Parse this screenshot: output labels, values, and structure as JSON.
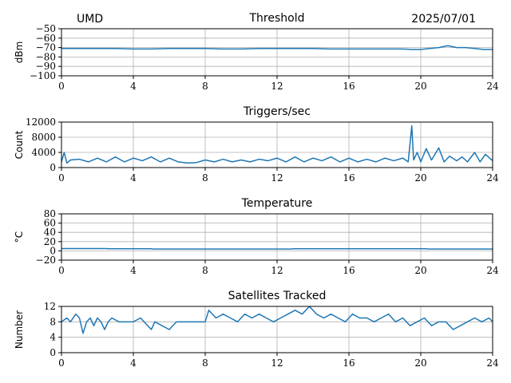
{
  "header": {
    "site": "UMD",
    "date": "2025/07/01"
  },
  "colors": {
    "series": "#1f77b4",
    "grid": "#b0b0b0"
  },
  "chart_data": [
    {
      "type": "line",
      "title": "Threshold",
      "ylabel": "dBm",
      "xlim": [
        0,
        24
      ],
      "ylim": [
        -100,
        -50
      ],
      "xticks": [
        "0",
        "4",
        "8",
        "12",
        "16",
        "20",
        "24"
      ],
      "yticks": [
        "−50",
        "−60",
        "−70",
        "−80",
        "−90",
        "−100"
      ],
      "grid": true,
      "x": [
        0,
        1,
        2,
        3,
        4,
        5,
        6,
        7,
        8,
        9,
        10,
        11,
        12,
        13,
        14,
        15,
        16,
        17,
        18,
        19,
        19.5,
        20,
        20.5,
        21,
        21.5,
        22,
        22.5,
        23,
        23.5,
        24
      ],
      "y": [
        -71,
        -71,
        -71,
        -71,
        -71.5,
        -71.5,
        -71,
        -71,
        -71,
        -71.5,
        -71.5,
        -71,
        -71,
        -71,
        -71,
        -71.5,
        -71.5,
        -71.5,
        -71.5,
        -71.5,
        -72,
        -72,
        -71,
        -70,
        -68,
        -70,
        -70,
        -71,
        -72,
        -72
      ]
    },
    {
      "type": "line",
      "title": "Triggers/sec",
      "ylabel": "Count",
      "xlim": [
        0,
        24
      ],
      "ylim": [
        0,
        12000
      ],
      "xticks": [
        "0",
        "4",
        "8",
        "12",
        "16",
        "20",
        "24"
      ],
      "yticks": [
        "12000",
        "8000",
        "4000",
        "0"
      ],
      "grid": true,
      "x": [
        0,
        0.15,
        0.3,
        0.5,
        1,
        1.5,
        2,
        2.5,
        3,
        3.5,
        4,
        4.5,
        5,
        5.5,
        6,
        6.5,
        7,
        7.5,
        8,
        8.5,
        9,
        9.5,
        10,
        10.5,
        11,
        11.5,
        12,
        12.5,
        13,
        13.5,
        14,
        14.5,
        15,
        15.5,
        16,
        16.5,
        17,
        17.5,
        18,
        18.5,
        19,
        19.3,
        19.5,
        19.6,
        19.8,
        20,
        20.3,
        20.6,
        21,
        21.3,
        21.6,
        22,
        22.3,
        22.6,
        23,
        23.3,
        23.6,
        24
      ],
      "y": [
        1500,
        4000,
        1200,
        2000,
        2200,
        1500,
        2500,
        1500,
        2800,
        1500,
        2500,
        1800,
        2800,
        1500,
        2500,
        1500,
        1200,
        1300,
        2000,
        1500,
        2200,
        1500,
        2000,
        1500,
        2200,
        1800,
        2500,
        1500,
        2800,
        1500,
        2500,
        1800,
        2800,
        1500,
        2500,
        1500,
        2200,
        1500,
        2500,
        1800,
        2500,
        1500,
        11000,
        2000,
        4000,
        1500,
        5000,
        2000,
        5200,
        1500,
        3000,
        1800,
        2800,
        1500,
        4000,
        1500,
        3500,
        1800
      ]
    },
    {
      "type": "line",
      "title": "Temperature",
      "ylabel": "°C",
      "xlim": [
        0,
        24
      ],
      "ylim": [
        -20,
        80
      ],
      "xticks": [
        "0",
        "4",
        "8",
        "12",
        "16",
        "20",
        "24"
      ],
      "yticks": [
        "80",
        "60",
        "40",
        "20",
        "0",
        "−20"
      ],
      "grid": true,
      "x": [
        0,
        2.5,
        2.6,
        5,
        5.1,
        12.8,
        12.9,
        20.3,
        20.4,
        24
      ],
      "y": [
        5,
        5,
        4.5,
        4.5,
        4,
        4,
        4.5,
        4.5,
        4,
        4
      ]
    },
    {
      "type": "line",
      "title": "Satellites Tracked",
      "ylabel": "Number",
      "xlim": [
        0,
        24
      ],
      "ylim": [
        0,
        12
      ],
      "xticks": [
        "0",
        "4",
        "8",
        "12",
        "16",
        "20",
        "24"
      ],
      "yticks": [
        "12",
        "8",
        "4",
        "0"
      ],
      "grid": true,
      "x": [
        0,
        0.3,
        0.5,
        0.8,
        1.0,
        1.2,
        1.4,
        1.6,
        1.8,
        2.0,
        2.2,
        2.4,
        2.6,
        2.8,
        3.2,
        3.6,
        4.0,
        4.4,
        4.8,
        5.0,
        5.2,
        5.6,
        6.0,
        6.4,
        6.8,
        7.2,
        7.6,
        8.0,
        8.2,
        8.6,
        9.0,
        9.4,
        9.8,
        10.2,
        10.6,
        11.0,
        11.4,
        11.8,
        12.2,
        12.6,
        13.0,
        13.4,
        13.8,
        14.0,
        14.2,
        14.6,
        15.0,
        15.4,
        15.8,
        16.2,
        16.6,
        17.0,
        17.4,
        17.8,
        18.2,
        18.6,
        19.0,
        19.4,
        19.8,
        20.2,
        20.6,
        21.0,
        21.4,
        21.8,
        22.2,
        22.6,
        23.0,
        23.4,
        23.8,
        24.0
      ],
      "y": [
        8,
        9,
        8,
        10,
        9,
        5,
        8,
        9,
        7,
        9,
        8,
        6,
        8,
        9,
        8,
        8,
        8,
        9,
        7,
        6,
        8,
        7,
        6,
        8,
        8,
        8,
        8,
        8,
        11,
        9,
        10,
        9,
        8,
        10,
        9,
        10,
        9,
        8,
        9,
        10,
        11,
        10,
        12,
        11,
        10,
        9,
        10,
        9,
        8,
        10,
        9,
        9,
        8,
        9,
        10,
        8,
        9,
        7,
        8,
        9,
        7,
        8,
        8,
        6,
        7,
        8,
        9,
        8,
        9,
        8
      ]
    }
  ]
}
